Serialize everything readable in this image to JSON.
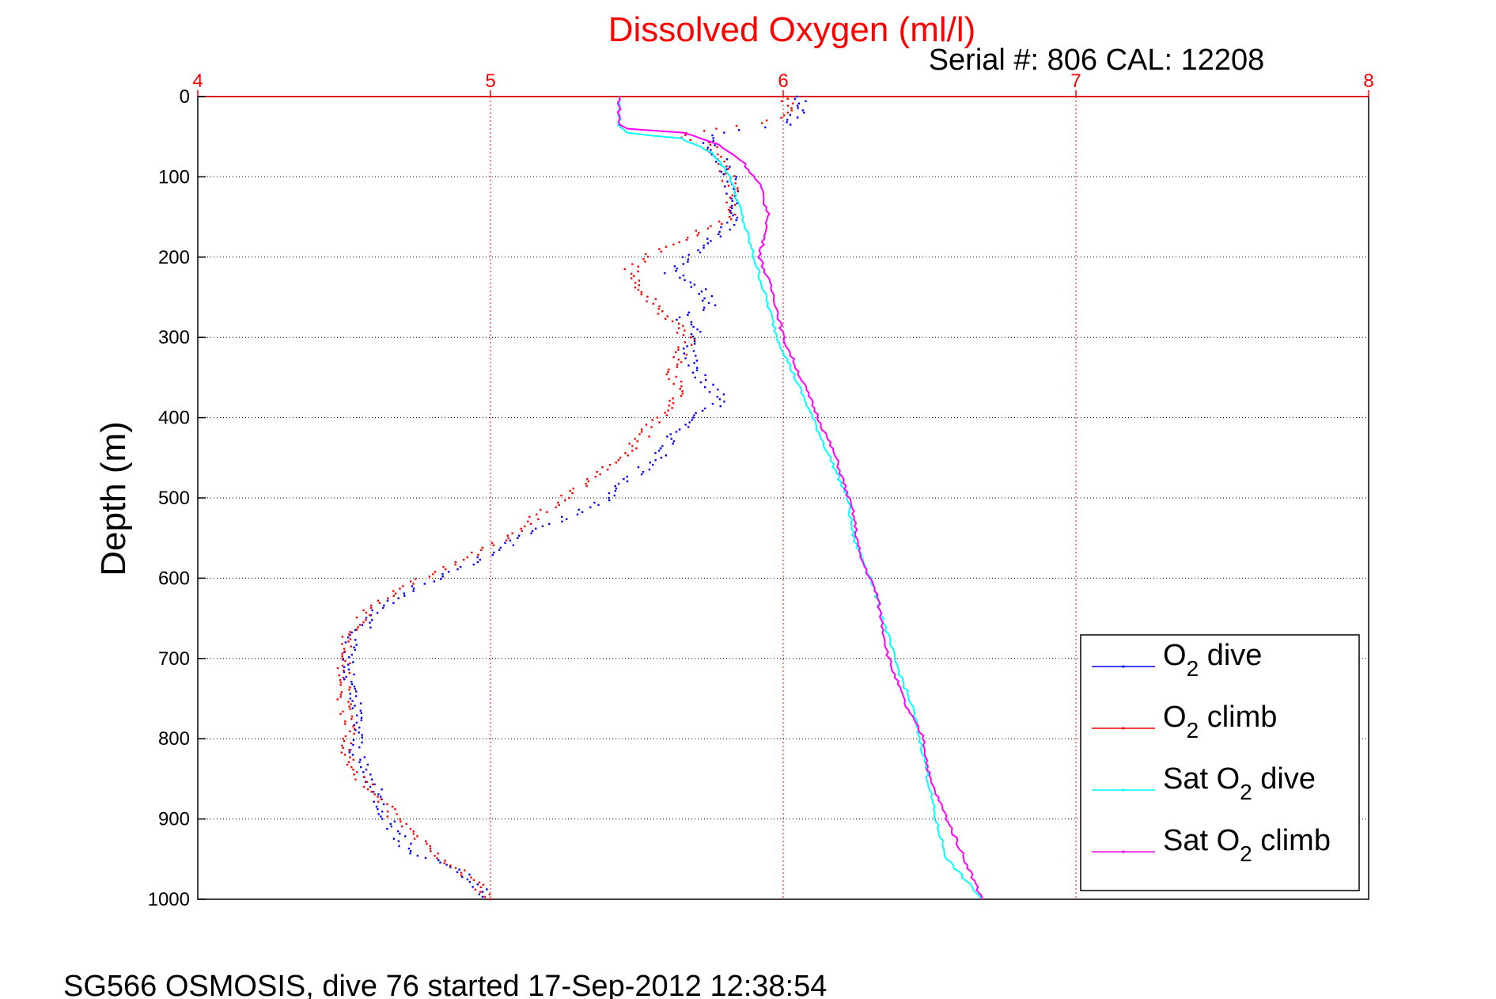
{
  "chart_data": {
    "type": "line",
    "title": "Dissolved Oxygen (ml/l)",
    "subtitle": "Serial #: 806  CAL: 12208",
    "footer": "SG566 OSMOSIS, dive 76 started 17-Sep-2012 12:38:54",
    "ylabel": "Depth (m)",
    "xlabel": "",
    "xlim": [
      4,
      8
    ],
    "ylim": [
      0,
      1000
    ],
    "y_reversed": true,
    "x_axis_position": "top",
    "grid": true,
    "x_ticks": [
      "4",
      "5",
      "6",
      "7",
      "8"
    ],
    "y_ticks": [
      "0",
      "100",
      "200",
      "300",
      "400",
      "500",
      "600",
      "700",
      "800",
      "900",
      "1000"
    ],
    "legend_position": "bottom-right",
    "colors": {
      "title": "#ff0000",
      "x_ticks": "#ff0000",
      "grid": "#ff0000"
    },
    "series": [
      {
        "name": "O₂ dive",
        "name_main": "O",
        "name_sub": "2",
        "name_rest": " dive",
        "color": "#0000ff",
        "style": "dots",
        "points": [
          [
            6.06,
            0
          ],
          [
            6.05,
            20
          ],
          [
            6.02,
            35
          ],
          [
            5.78,
            45
          ],
          [
            5.74,
            55
          ],
          [
            5.78,
            75
          ],
          [
            5.82,
            100
          ],
          [
            5.83,
            130
          ],
          [
            5.82,
            160
          ],
          [
            5.75,
            180
          ],
          [
            5.68,
            200
          ],
          [
            5.62,
            220
          ],
          [
            5.72,
            240
          ],
          [
            5.75,
            260
          ],
          [
            5.65,
            275
          ],
          [
            5.7,
            290
          ],
          [
            5.68,
            320
          ],
          [
            5.72,
            350
          ],
          [
            5.8,
            380
          ],
          [
            5.68,
            400
          ],
          [
            5.57,
            450
          ],
          [
            5.4,
            500
          ],
          [
            5.1,
            550
          ],
          [
            4.95,
            580
          ],
          [
            4.75,
            610
          ],
          [
            4.62,
            640
          ],
          [
            4.52,
            680
          ],
          [
            4.51,
            720
          ],
          [
            4.55,
            780
          ],
          [
            4.54,
            820
          ],
          [
            4.6,
            860
          ],
          [
            4.65,
            900
          ],
          [
            4.72,
            940
          ],
          [
            4.88,
            960
          ],
          [
            5.0,
            1000
          ]
        ]
      },
      {
        "name": "O₂ climb",
        "name_main": "O",
        "name_sub": "2",
        "name_rest": " climb",
        "color": "#ff0000",
        "style": "dots",
        "points": [
          [
            6.02,
            0
          ],
          [
            6.01,
            20
          ],
          [
            5.95,
            33
          ],
          [
            5.78,
            40
          ],
          [
            5.65,
            48
          ],
          [
            5.75,
            60
          ],
          [
            5.8,
            90
          ],
          [
            5.83,
            120
          ],
          [
            5.82,
            150
          ],
          [
            5.7,
            170
          ],
          [
            5.58,
            190
          ],
          [
            5.48,
            215
          ],
          [
            5.5,
            235
          ],
          [
            5.55,
            255
          ],
          [
            5.62,
            280
          ],
          [
            5.68,
            300
          ],
          [
            5.62,
            340
          ],
          [
            5.65,
            370
          ],
          [
            5.58,
            400
          ],
          [
            5.45,
            450
          ],
          [
            5.25,
            500
          ],
          [
            5.05,
            550
          ],
          [
            4.9,
            580
          ],
          [
            4.7,
            610
          ],
          [
            4.58,
            640
          ],
          [
            4.52,
            670
          ],
          [
            4.5,
            700
          ],
          [
            4.5,
            760
          ],
          [
            4.52,
            800
          ],
          [
            4.5,
            820
          ],
          [
            4.58,
            860
          ],
          [
            4.68,
            900
          ],
          [
            4.8,
            940
          ],
          [
            4.92,
            970
          ],
          [
            5.0,
            1000
          ]
        ]
      },
      {
        "name": "Sat O₂ dive",
        "name_main": "Sat O",
        "name_sub": "2",
        "name_rest": " dive",
        "color": "#00ffff",
        "style": "line",
        "points": [
          [
            5.44,
            0
          ],
          [
            5.44,
            35
          ],
          [
            5.46,
            45
          ],
          [
            5.65,
            52
          ],
          [
            5.76,
            70
          ],
          [
            5.82,
            100
          ],
          [
            5.86,
            150
          ],
          [
            5.9,
            200
          ],
          [
            5.94,
            250
          ],
          [
            5.98,
            300
          ],
          [
            6.04,
            350
          ],
          [
            6.1,
            400
          ],
          [
            6.16,
            450
          ],
          [
            6.22,
            500
          ],
          [
            6.24,
            550
          ],
          [
            6.3,
            600
          ],
          [
            6.34,
            650
          ],
          [
            6.38,
            700
          ],
          [
            6.44,
            760
          ],
          [
            6.48,
            820
          ],
          [
            6.52,
            900
          ],
          [
            6.56,
            950
          ],
          [
            6.68,
            1000
          ]
        ]
      },
      {
        "name": "Sat O₂ climb",
        "name_main": "Sat O",
        "name_sub": "2",
        "name_rest": " climb",
        "color": "#ff00ff",
        "style": "line",
        "points": [
          [
            5.44,
            0
          ],
          [
            5.44,
            35
          ],
          [
            5.47,
            40
          ],
          [
            5.66,
            45
          ],
          [
            5.78,
            60
          ],
          [
            5.86,
            80
          ],
          [
            5.92,
            110
          ],
          [
            5.95,
            150
          ],
          [
            5.92,
            200
          ],
          [
            5.97,
            250
          ],
          [
            6.0,
            300
          ],
          [
            6.06,
            350
          ],
          [
            6.12,
            400
          ],
          [
            6.18,
            450
          ],
          [
            6.24,
            520
          ],
          [
            6.26,
            570
          ],
          [
            6.32,
            620
          ],
          [
            6.36,
            700
          ],
          [
            6.42,
            760
          ],
          [
            6.48,
            800
          ],
          [
            6.5,
            850
          ],
          [
            6.56,
            900
          ],
          [
            6.62,
            950
          ],
          [
            6.68,
            1000
          ]
        ]
      }
    ]
  }
}
